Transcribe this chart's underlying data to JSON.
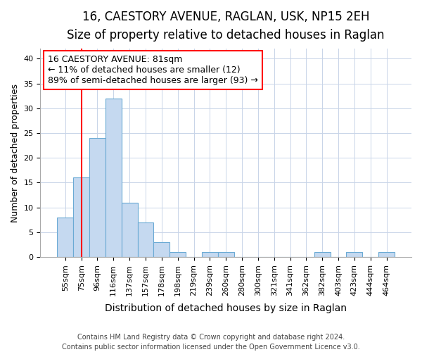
{
  "title1": "16, CAESTORY AVENUE, RAGLAN, USK, NP15 2EH",
  "title2": "Size of property relative to detached houses in Raglan",
  "xlabel": "Distribution of detached houses by size in Raglan",
  "ylabel": "Number of detached properties",
  "categories": [
    "55sqm",
    "75sqm",
    "96sqm",
    "116sqm",
    "137sqm",
    "157sqm",
    "178sqm",
    "198sqm",
    "219sqm",
    "239sqm",
    "260sqm",
    "280sqm",
    "300sqm",
    "321sqm",
    "341sqm",
    "362sqm",
    "382sqm",
    "403sqm",
    "423sqm",
    "444sqm",
    "464sqm"
  ],
  "values": [
    8,
    16,
    24,
    32,
    11,
    7,
    3,
    1,
    0,
    1,
    1,
    0,
    0,
    0,
    0,
    0,
    1,
    0,
    1,
    0,
    1
  ],
  "bar_color": "#c5d9f0",
  "bar_edge_color": "#6aaad4",
  "red_line_x": 1.0,
  "annotation_line1": "16 CAESTORY AVENUE: 81sqm",
  "annotation_line2": "← 11% of detached houses are smaller (12)",
  "annotation_line3": "89% of semi-detached houses are larger (93) →",
  "ylim": [
    0,
    42
  ],
  "yticks": [
    0,
    5,
    10,
    15,
    20,
    25,
    30,
    35,
    40
  ],
  "footer1": "Contains HM Land Registry data © Crown copyright and database right 2024.",
  "footer2": "Contains public sector information licensed under the Open Government Licence v3.0.",
  "background_color": "#ffffff",
  "plot_bg_color": "#ffffff",
  "grid_color": "#c8d4e8",
  "title1_fontsize": 12,
  "title2_fontsize": 10,
  "tick_fontsize": 8,
  "ylabel_fontsize": 9,
  "xlabel_fontsize": 10,
  "annotation_fontsize": 9,
  "footer_fontsize": 7
}
